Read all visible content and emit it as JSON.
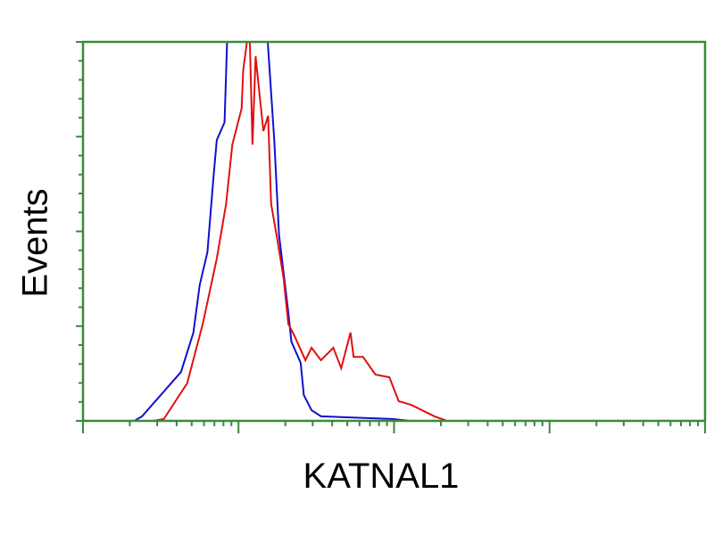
{
  "chart_data": {
    "type": "line",
    "title": "",
    "xlabel": "KATNAL1",
    "ylabel": "Events",
    "x_scale": "log",
    "x_decades": [
      0,
      4
    ],
    "ylim": [
      0,
      100
    ],
    "grid": false,
    "frame_color": "#3a8a3a",
    "series": [
      {
        "color": "#1010d0",
        "points": [
          [
            0.33,
            0
          ],
          [
            0.38,
            1.2
          ],
          [
            0.63,
            12.9
          ],
          [
            0.71,
            23.3
          ],
          [
            0.75,
            35.8
          ],
          [
            0.8,
            44.5
          ],
          [
            0.84,
            64.9
          ],
          [
            0.86,
            74.1
          ],
          [
            0.91,
            78.8
          ],
          [
            0.93,
            105
          ],
          [
            1.18,
            105
          ],
          [
            1.23,
            74.1
          ],
          [
            1.26,
            49.2
          ],
          [
            1.32,
            28.7
          ],
          [
            1.34,
            20.9
          ],
          [
            1.4,
            15.3
          ],
          [
            1.42,
            6.8
          ],
          [
            1.47,
            2.8
          ],
          [
            1.53,
            1.2
          ],
          [
            1.99,
            0.5
          ],
          [
            2.1,
            0
          ]
        ]
      },
      {
        "color": "#e01010",
        "points": [
          [
            0.45,
            0
          ],
          [
            0.52,
            0.5
          ],
          [
            0.67,
            9.9
          ],
          [
            0.77,
            25.6
          ],
          [
            0.86,
            42.8
          ],
          [
            0.92,
            57.2
          ],
          [
            0.96,
            72.9
          ],
          [
            1.02,
            82.4
          ],
          [
            1.03,
            92.5
          ],
          [
            1.07,
            105
          ],
          [
            1.09,
            72.9
          ],
          [
            1.11,
            96.2
          ],
          [
            1.13,
            88.2
          ],
          [
            1.16,
            76.5
          ],
          [
            1.19,
            80.5
          ],
          [
            1.21,
            57.2
          ],
          [
            1.25,
            47.8
          ],
          [
            1.29,
            37.6
          ],
          [
            1.32,
            25.6
          ],
          [
            1.36,
            22.4
          ],
          [
            1.43,
            16.0
          ],
          [
            1.47,
            19.3
          ],
          [
            1.53,
            16.0
          ],
          [
            1.61,
            19.3
          ],
          [
            1.66,
            13.9
          ],
          [
            1.72,
            23.3
          ],
          [
            1.74,
            16.9
          ],
          [
            1.8,
            16.9
          ],
          [
            1.88,
            12.2
          ],
          [
            1.97,
            11.5
          ],
          [
            2.03,
            5.2
          ],
          [
            2.11,
            4.2
          ],
          [
            2.26,
            1.2
          ],
          [
            2.34,
            0
          ]
        ]
      }
    ]
  }
}
